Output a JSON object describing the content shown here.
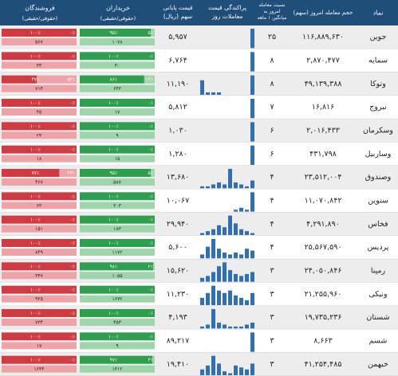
{
  "table": {
    "header": {
      "symbol": "نماد",
      "volume": "حجم معامله امروز (سهم)",
      "ratio": "نسبت معامله امروز به میانگین ۱ ماهه",
      "hist": "پراکندگی قیمت معاملات روز",
      "price": "قیمت پایانی سهم (ریال)",
      "buyers": "خریداران",
      "buyers_sub": "(حقوقی/حقیقی)",
      "sellers": "فروشندگان",
      "sellers_sub": "(حقوقی/حقیقی)"
    },
    "rows": [
      {
        "symbol": "جوین",
        "volume": "۱۱۶,۸۸۹,۶۳۰",
        "ratio": "۲۵",
        "price": "۵,۹۵۷",
        "hist": [
          0,
          0,
          0,
          0,
          0,
          0,
          0,
          0,
          0,
          10
        ],
        "buyers": {
          "legal": {
            "value": 5,
            "label": "۵٪"
          },
          "real": {
            "value": 95,
            "label": "۹۵٪"
          },
          "count": "۱۰۷۸"
        },
        "sellers": {
          "legal": {
            "value": 0,
            "label": "۰٪"
          },
          "real": {
            "value": 100,
            "label": "۱۰۰٪"
          },
          "count": "۵۶۷"
        }
      },
      {
        "symbol": "سمایه",
        "volume": "۲,۸۷۰,۴۷۷",
        "ratio": "۸",
        "price": "۶,۷۶۴",
        "hist": [
          0,
          0,
          0,
          0,
          0,
          0,
          0,
          0,
          0,
          10
        ],
        "buyers": {
          "legal": {
            "value": 0,
            "label": "۰٪"
          },
          "real": {
            "value": 100,
            "label": "۱۰۰٪"
          },
          "count": "۳۰"
        },
        "sellers": {
          "legal": {
            "value": 0,
            "label": "۰٪"
          },
          "real": {
            "value": 100,
            "label": "۱۰۰٪"
          },
          "count": "۳۳"
        }
      },
      {
        "symbol": "وتوکا",
        "volume": "۴۹,۱۳۹,۳۸۸",
        "ratio": "۸",
        "price": "۱۱,۱۹۰",
        "hist": [
          6,
          1,
          1,
          1,
          0,
          0,
          0,
          0,
          0,
          8
        ],
        "buyers": {
          "legal": {
            "value": 14,
            "label": "۱۴٪"
          },
          "real": {
            "value": 86,
            "label": "۸۶٪"
          },
          "count": "۶۴۳"
        },
        "sellers": {
          "legal": {
            "value": 53,
            "label": "۵۳٪"
          },
          "real": {
            "value": 47,
            "label": "۴۷٪"
          },
          "count": "۷۱۴"
        }
      },
      {
        "symbol": "نبروج",
        "volume": "۱۶,۸۱۶",
        "ratio": "۷",
        "price": "۵,۸۱۲",
        "hist": [
          0,
          0,
          0,
          0,
          0,
          0,
          0,
          0,
          0,
          10
        ],
        "buyers": {
          "legal": {
            "value": 0,
            "label": "۰٪"
          },
          "real": {
            "value": 100,
            "label": "۱۰۰٪"
          },
          "count": "۱۷"
        },
        "sellers": {
          "legal": {
            "value": 0,
            "label": "۰٪"
          },
          "real": {
            "value": 100,
            "label": "۱۰۰٪"
          },
          "count": "۴۵"
        }
      },
      {
        "symbol": "وسکرمان",
        "volume": "۲,۰۱۶,۴۳۳",
        "ratio": "۶",
        "price": "۱,۰۳۰",
        "hist": [
          0,
          0,
          0,
          0,
          0,
          0,
          0,
          0,
          0,
          10
        ],
        "buyers": {
          "legal": {
            "value": 0,
            "label": "۰٪"
          },
          "real": {
            "value": 100,
            "label": "۱۰۰٪"
          },
          "count": "۹"
        },
        "sellers": {
          "legal": {
            "value": 0,
            "label": "۰٪"
          },
          "real": {
            "value": 100,
            "label": "۱۰۰٪"
          },
          "count": "۲۴"
        }
      },
      {
        "symbol": "وساربیل",
        "volume": "۴۳۱,۷۹۸",
        "ratio": "۶",
        "price": "۱,۲۸۰",
        "hist": [
          0,
          0,
          0,
          0,
          0,
          0,
          0,
          0,
          0,
          10
        ],
        "buyers": {
          "legal": {
            "value": 0,
            "label": "۰٪"
          },
          "real": {
            "value": 100,
            "label": "۱۰۰٪"
          },
          "count": "۱۵"
        },
        "sellers": {
          "legal": {
            "value": 0,
            "label": "۰٪"
          },
          "real": {
            "value": 100,
            "label": "۱۰۰٪"
          },
          "count": "۱۸"
        }
      },
      {
        "symbol": "وصندوق",
        "volume": "۲۳,۵۱۲,۰۰۴",
        "ratio": "۴",
        "price": "۱۳,۶۸۰",
        "hist": [
          1,
          1,
          2,
          3,
          2,
          10,
          3,
          2,
          1,
          4
        ],
        "buyers": {
          "legal": {
            "value": 5,
            "label": "۵٪"
          },
          "real": {
            "value": 95,
            "label": "۹۵٪"
          },
          "count": "۵۸۷"
        },
        "sellers": {
          "legal": {
            "value": 23,
            "label": "۲۳٪"
          },
          "real": {
            "value": 77,
            "label": "۷۷٪"
          },
          "count": "۴۶۷"
        }
      },
      {
        "symbol": "سنوین",
        "volume": "۱۱,۰۷۰,۸۴۲",
        "ratio": "۴",
        "price": "۱۰,۰۶۷",
        "hist": [
          0,
          0,
          0,
          0,
          0,
          0,
          1,
          2,
          1,
          10
        ],
        "buyers": {
          "legal": {
            "value": 0,
            "label": "۰٪"
          },
          "real": {
            "value": 100,
            "label": "۱۰۰٪"
          },
          "count": "۲۰۳"
        },
        "sellers": {
          "legal": {
            "value": 0,
            "label": "۰٪"
          },
          "real": {
            "value": 100,
            "label": "۱۰۰٪"
          },
          "count": "۶۳"
        }
      },
      {
        "symbol": "فخاس",
        "volume": "۴,۲۹۱,۸۹۰",
        "ratio": "۴",
        "price": "۲۹,۹۴۰",
        "hist": [
          1,
          2,
          3,
          5,
          4,
          10,
          6,
          3,
          2,
          1
        ],
        "buyers": {
          "legal": {
            "value": 0,
            "label": "۰٪"
          },
          "real": {
            "value": 100,
            "label": "۱۰۰٪"
          },
          "count": "۱۸۳"
        },
        "sellers": {
          "legal": {
            "value": 0,
            "label": "۰٪"
          },
          "real": {
            "value": 100,
            "label": "۱۰۰٪"
          },
          "count": "۱۵۱"
        }
      },
      {
        "symbol": "پردیس",
        "volume": "۲۵,۵۶۷,۵۹۰",
        "ratio": "۴",
        "price": "۵,۶۰۰",
        "hist": [
          2,
          6,
          10,
          5,
          3,
          2,
          3,
          2,
          5,
          4
        ],
        "buyers": {
          "legal": {
            "value": 0,
            "label": "۰٪"
          },
          "real": {
            "value": 100,
            "label": "۱۰۰٪"
          },
          "count": "۱۱۷۲"
        },
        "sellers": {
          "legal": {
            "value": 0,
            "label": "۰٪"
          },
          "real": {
            "value": 100,
            "label": "۱۰۰٪"
          },
          "count": "۸۴۹"
        }
      },
      {
        "symbol": "رمپنا",
        "volume": "۲۴,۰۵۰,۸۴۶",
        "ratio": "۳",
        "price": "۱۵,۶۲۰",
        "hist": [
          2,
          3,
          5,
          8,
          10,
          6,
          4,
          3,
          4,
          5
        ],
        "buyers": {
          "legal": {
            "value": 2,
            "label": "۲٪"
          },
          "real": {
            "value": 98,
            "label": "۹۸٪"
          },
          "count": "۱۰۵۵"
        },
        "sellers": {
          "legal": {
            "value": 0,
            "label": "۰٪"
          },
          "real": {
            "value": 100,
            "label": "۱۰۰٪"
          },
          "count": "۳۴۷"
        }
      },
      {
        "symbol": "ونیکی",
        "volume": "۲۱,۲۵۵,۹۶۰",
        "ratio": "۳",
        "price": "۱۱,۲۳۰",
        "hist": [
          3,
          5,
          8,
          6,
          5,
          6,
          4,
          3,
          2,
          5
        ],
        "buyers": {
          "legal": {
            "value": 0,
            "label": "۰٪"
          },
          "real": {
            "value": 100,
            "label": "۱۰۰٪"
          },
          "count": "۱۶۷۲"
        },
        "sellers": {
          "legal": {
            "value": 0,
            "label": "۰٪"
          },
          "real": {
            "value": 100,
            "label": "۱۰۰٪"
          },
          "count": "۹۲۵"
        }
      },
      {
        "symbol": "شستان",
        "volume": "۱۹,۷۳۵,۲۳۶",
        "ratio": "۳",
        "price": "۴,۱۹۳",
        "hist": [
          1,
          2,
          10,
          3,
          2,
          1,
          1,
          1,
          2,
          3
        ],
        "buyers": {
          "legal": {
            "value": 0,
            "label": "۰٪"
          },
          "real": {
            "value": 100,
            "label": "۱۰۰٪"
          },
          "count": "۴۵۳"
        },
        "sellers": {
          "legal": {
            "value": 0,
            "label": "۰٪"
          },
          "real": {
            "value": 100,
            "label": "۱۰۰٪"
          },
          "count": "۷۳۴"
        }
      },
      {
        "symbol": "شسم",
        "volume": "۸,۶۶۳",
        "ratio": "۳",
        "price": "۸۹,۲۱۷",
        "hist": [
          0,
          0,
          0,
          0,
          0,
          0,
          0,
          0,
          0,
          10
        ],
        "buyers": {
          "legal": {
            "value": 0,
            "label": "۰٪"
          },
          "real": {
            "value": 100,
            "label": "۱۰۰٪"
          },
          "count": "۹"
        },
        "sellers": {
          "legal": {
            "value": 0,
            "label": "۰٪"
          },
          "real": {
            "value": 100,
            "label": "۱۰۰٪"
          },
          "count": "۱۷"
        }
      },
      {
        "symbol": "خبهمن",
        "volume": "۴۱,۲۵۴,۴۸۵",
        "ratio": "۳",
        "price": "۱۹,۴۱۰",
        "hist": [
          3,
          5,
          10,
          6,
          2,
          1,
          5,
          4,
          3,
          6
        ],
        "buyers": {
          "legal": {
            "value": 3,
            "label": "۳٪"
          },
          "real": {
            "value": 97,
            "label": "۹۷٪"
          },
          "count": "۱۳۱۲"
        },
        "sellers": {
          "legal": {
            "value": 0,
            "label": "۰٪"
          },
          "real": {
            "value": 100,
            "label": "۱۰۰٪"
          },
          "count": "۱۶۴۴"
        }
      }
    ]
  }
}
